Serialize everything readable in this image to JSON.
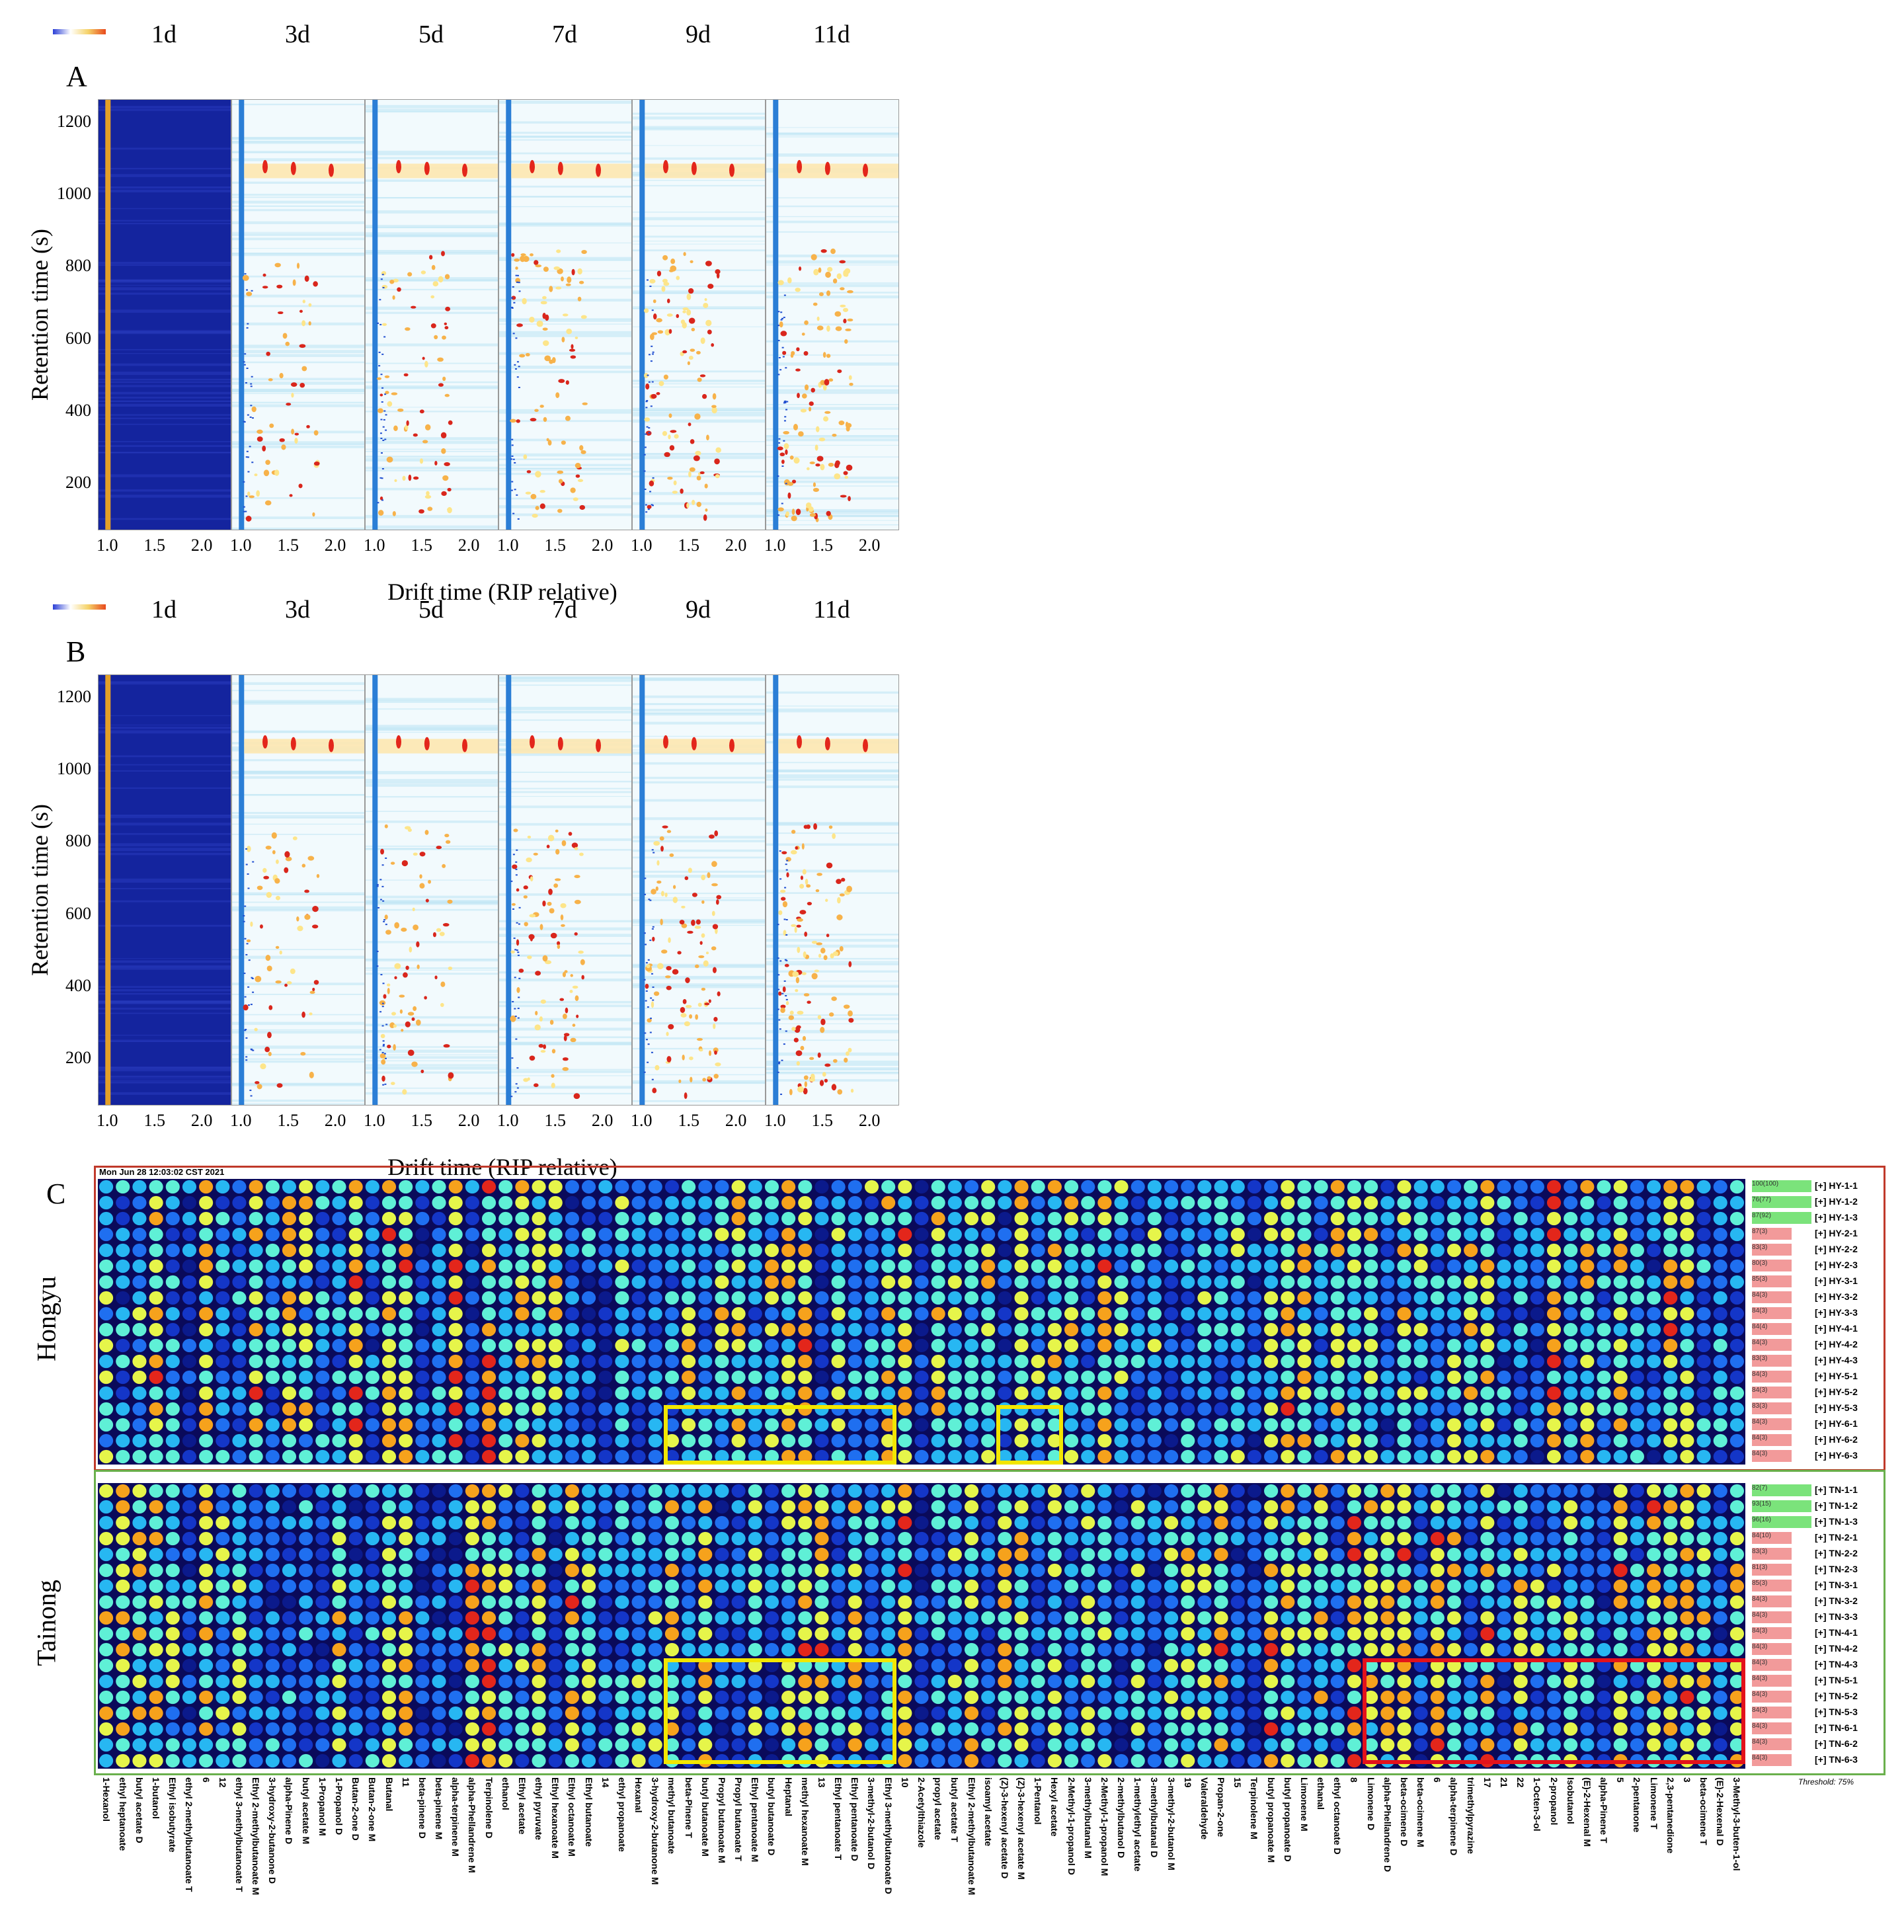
{
  "chart_data": [
    {
      "type": "heatmap",
      "panel": "A",
      "columns": [
        "1d",
        "3d",
        "5d",
        "7d",
        "9d",
        "11d"
      ],
      "ylabel": "Retention time (s)",
      "xlabel": "Drift time (RIP relative)",
      "yticks": [
        "200",
        "400",
        "600",
        "800",
        "1000",
        "1200"
      ],
      "xticks": [
        "1.0",
        "1.5",
        "2.0"
      ],
      "ylim": [
        70,
        1260
      ],
      "xlim": [
        0.9,
        2.3
      ],
      "reference_column": "1d"
    },
    {
      "type": "heatmap",
      "panel": "B",
      "columns": [
        "1d",
        "3d",
        "5d",
        "7d",
        "9d",
        "11d"
      ],
      "ylabel": "Retention time (s)",
      "xlabel": "Drift time (RIP relative)",
      "yticks": [
        "200",
        "400",
        "600",
        "800",
        "1000",
        "1200"
      ],
      "xticks": [
        "1.0",
        "1.5",
        "2.0"
      ],
      "ylim": [
        70,
        1260
      ],
      "xlim": [
        0.9,
        2.3
      ],
      "reference_column": "1d"
    },
    {
      "type": "heatmap",
      "panel": "C",
      "timestamp": "Mon Jun 28 12:03:02 CST 2021",
      "groups": [
        {
          "name": "Hongyu",
          "rows": [
            "[+] HY-1-1",
            "[+] HY-1-2",
            "[+] HY-1-3",
            "[+] HY-2-1",
            "[+] HY-2-2",
            "[+] HY-2-3",
            "[+] HY-3-1",
            "[+] HY-3-2",
            "[+] HY-3-3",
            "[+] HY-4-1",
            "[+] HY-4-2",
            "[+] HY-4-3",
            "[+] HY-5-1",
            "[+] HY-5-2",
            "[+] HY-5-3",
            "[+] HY-6-1",
            "[+] HY-6-2",
            "[+] HY-6-3"
          ]
        },
        {
          "name": "Tainong",
          "rows": [
            "[+] TN-1-1",
            "[+] TN-1-2",
            "[+] TN-1-3",
            "[+] TN-2-1",
            "[+] TN-2-2",
            "[+] TN-2-3",
            "[+] TN-3-1",
            "[+] TN-3-2",
            "[+] TN-3-3",
            "[+] TN-4-1",
            "[+] TN-4-2",
            "[+] TN-4-3",
            "[+] TN-5-1",
            "[+] TN-5-2",
            "[+] TN-5-3",
            "[+] TN-6-1",
            "[+] TN-6-2",
            "[+] TN-6-3"
          ]
        }
      ],
      "compounds": [
        "1-Hexanol",
        "ethyl heptanoate",
        "butyl acetate D",
        "1-butanol",
        "Ethyl isobutyrate",
        "ethyl 2-methylbutanoate T",
        "6",
        "12",
        "ethyl 3-methylbutanoate T",
        "Ethyl 2-methylbutanoate M",
        "3-hydroxy-2-butanone D",
        "alpha-Pinene D",
        "butyl acetate M",
        "1-Propanol M",
        "1-Propanol D",
        "Butan-2-one D",
        "Butan-2-one M",
        "Butanal",
        "11",
        "beta-pinene D",
        "beta-pinene M",
        "alpha-terpinene M",
        "alpha-Phellandrene M",
        "Terpinolene D",
        "ethanol",
        "Ethyl acetate",
        "ethyl pyruvate",
        "Ethyl hexanoate M",
        "Ethyl octanoate M",
        "Ethyl butanoate",
        "14",
        "ethyl propanoate",
        "Hexanal",
        "3-hydroxy-2-butanone M",
        "methyl butanoate",
        "beta-Pinene T",
        "butyl butanoate M",
        "Propyl butanoate M",
        "Propyl butanoate T",
        "Ethyl pentanoate M",
        "butyl butanoate D",
        "Heptanal",
        "methyl hexanoate M",
        "13",
        "Ethyl pentanoate T",
        "Ethyl pentanoate D",
        "3-methyl-2-butanol D",
        "Ethyl 3-methylbutanoate D",
        "10",
        "2-Acetylthiazole",
        "propyl acetate",
        "butyl acetate T",
        "Ethyl 2-methylbutanoate M",
        "isoamyl acetate",
        "(Z)-3-hexenyl acetate D",
        "(Z)-3-hexenyl acetate M",
        "1-Pentanol",
        "Hexyl acetate",
        "2-Methyl-1-propanol D",
        "3-methylbutanal M",
        "2-Methyl-1-propanol M",
        "2-methylbutanol D",
        "1-methylethyl acetate",
        "3-methylbutanal D",
        "3-methyl-2-butanol M",
        "19",
        "Valeraldehyde",
        "Propan-2-one",
        "15",
        "Terpinolene M",
        "butyl propanoate M",
        "butyl propanoate D",
        "Limonene M",
        "ethanal",
        "ethyl octanoate D",
        "8",
        "Limonene D",
        "alpha-Phellandrene D",
        "beta-ocimene D",
        "beta-ocimene M",
        "6",
        "alpha-terpinene D",
        "trimethylpyrazine",
        "17",
        "21",
        "22",
        "1-Octen-3-ol",
        "2-propanol",
        "Isobutanol",
        "(E)-2-Hexenal M",
        "alpha-Pinene T",
        "5",
        "2-pentanone",
        "Limonene T",
        "2,3-pentanedione",
        "3",
        "beta-ocimene T",
        "(E)-2-Hexenal D",
        "3-Methyl-3-buten-1-ol"
      ],
      "threshold": "Threshold: 75%",
      "highlights": [
        "yellow box: Hongyu rows 6-1 to 6-3, methyl butanoate to Ethyl 3-methylbutanoate D",
        "yellow box: Hongyu rows 6-1 to 6-3, (Z)-3-hexenyl acetate D to Hexyl acetate",
        "yellow box: Tainong rows 5-1 to 6-3, methyl butanoate to Ethyl 3-methylbutanoate D",
        "red box: Tainong rows 5-1 to 6-3, Limonene D to 3-Methyl-3-buten-1-ol"
      ]
    }
  ],
  "hy_badges": [
    "100(100)",
    "76(77)",
    "87(92)",
    "87(3)",
    "83(3)",
    "80(3)",
    "85(3)",
    "84(3)",
    "84(3)",
    "84(4)",
    "84(3)",
    "83(3)",
    "84(3)",
    "84(3)",
    "83(3)",
    "84(3)",
    "84(3)",
    "84(3)"
  ],
  "tn_badges": [
    "82(7)",
    "93(15)",
    "96(16)",
    "84(10)",
    "83(3)",
    "81(3)",
    "85(3)",
    "84(3)",
    "84(3)",
    "84(3)",
    "84(3)",
    "84(3)",
    "84(3)",
    "84(3)",
    "84(3)",
    "84(3)",
    "84(3)",
    "84(3)"
  ],
  "colors": {
    "dark_blue": "#1a2ea8",
    "spectrum_bg": "#eaf6fb",
    "hy_border": "#c0392b",
    "tn_border": "#6ab04c",
    "highlight_yellow": "#f2e600",
    "highlight_red": "#e3121b"
  }
}
